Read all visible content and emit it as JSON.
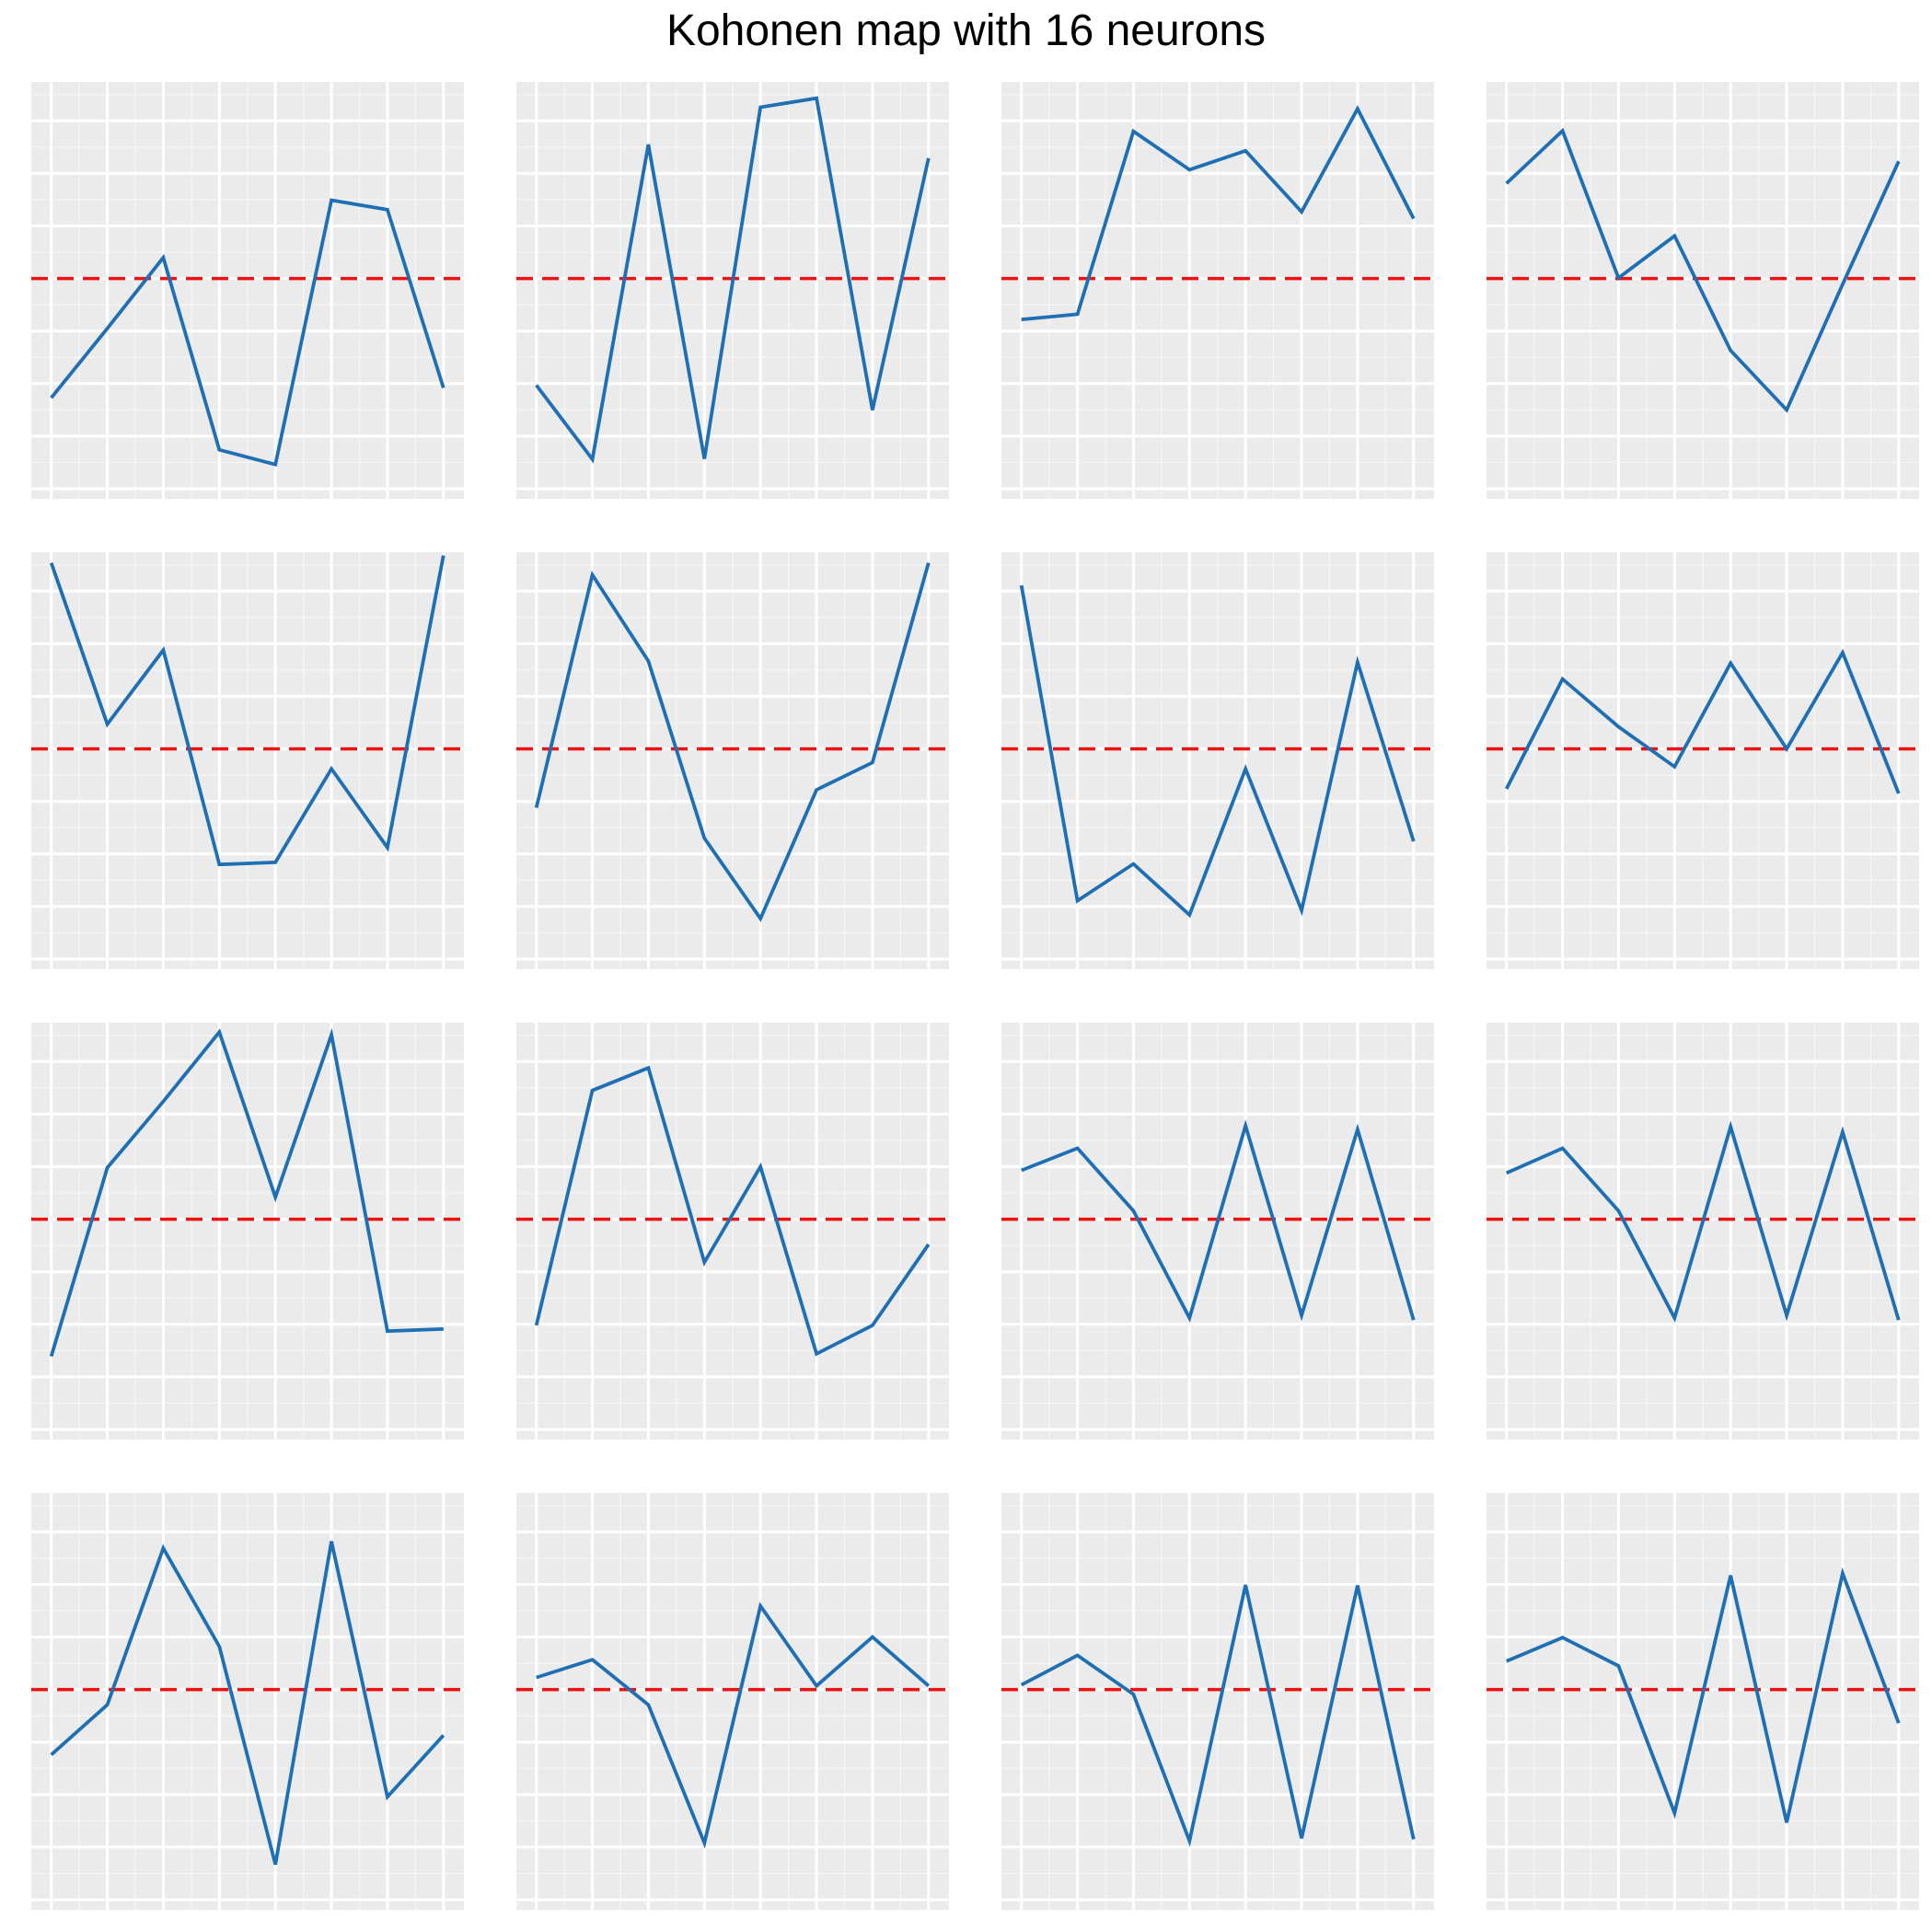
{
  "title": "Kohonen map with 16 neurons",
  "colors": {
    "panel_background": "#ebebeb",
    "grid": "#ffffff",
    "line": "#1f6fb4",
    "reference": "#ee1111",
    "page_background": "#ffffff"
  },
  "chart_data": {
    "type": "line",
    "title": "Kohonen map with 16 neurons",
    "xlabel": "",
    "ylabel": "",
    "layout": "4x4 small multiples",
    "x": [
      1,
      2,
      3,
      4,
      5,
      6,
      7,
      8
    ],
    "ylim": [
      0,
      8
    ],
    "reference_line": {
      "y": 4,
      "style": "dashed"
    },
    "grid": true,
    "axis_labels_shown": false,
    "panels": [
      {
        "values": [
          1.73,
          3.05,
          4.4,
          0.74,
          0.46,
          5.49,
          5.31,
          1.92
        ]
      },
      {
        "values": [
          1.97,
          0.56,
          6.55,
          0.57,
          7.26,
          7.43,
          1.5,
          6.29
        ]
      },
      {
        "values": [
          3.22,
          3.32,
          6.8,
          6.07,
          6.43,
          5.27,
          7.23,
          5.14
        ]
      },
      {
        "values": [
          5.81,
          6.81,
          4.01,
          4.81,
          2.63,
          1.5,
          3.89,
          6.23
        ]
      },
      {
        "values": [
          7.54,
          4.47,
          5.88,
          1.8,
          1.84,
          3.62,
          2.12,
          7.68
        ]
      },
      {
        "values": [
          2.88,
          7.31,
          5.67,
          2.3,
          0.77,
          3.22,
          3.74,
          7.54
        ]
      },
      {
        "values": [
          7.11,
          1.11,
          1.81,
          0.84,
          3.62,
          0.93,
          5.65,
          2.24
        ]
      },
      {
        "values": [
          3.24,
          5.33,
          4.42,
          3.66,
          5.63,
          4.0,
          5.83,
          3.15
        ]
      },
      {
        "values": [
          1.39,
          4.98,
          6.24,
          7.56,
          4.42,
          7.51,
          1.87,
          1.91
        ]
      },
      {
        "values": [
          1.98,
          6.45,
          6.88,
          3.18,
          5.0,
          1.44,
          1.98,
          3.52
        ]
      },
      {
        "values": [
          4.93,
          5.35,
          4.16,
          2.12,
          5.78,
          2.17,
          5.71,
          2.08
        ]
      },
      {
        "values": [
          4.88,
          5.35,
          4.16,
          2.12,
          5.76,
          2.17,
          5.66,
          2.08
        ]
      },
      {
        "values": [
          2.76,
          3.71,
          6.69,
          4.82,
          0.67,
          6.82,
          1.96,
          3.13
        ]
      },
      {
        "values": [
          4.23,
          4.57,
          3.71,
          1.08,
          5.59,
          4.07,
          5.0,
          4.07
        ]
      },
      {
        "values": [
          4.09,
          4.65,
          3.91,
          1.12,
          5.99,
          1.17,
          5.98,
          1.15
        ]
      },
      {
        "values": [
          4.54,
          4.99,
          4.45,
          1.65,
          6.17,
          1.47,
          6.21,
          3.36
        ]
      }
    ]
  }
}
